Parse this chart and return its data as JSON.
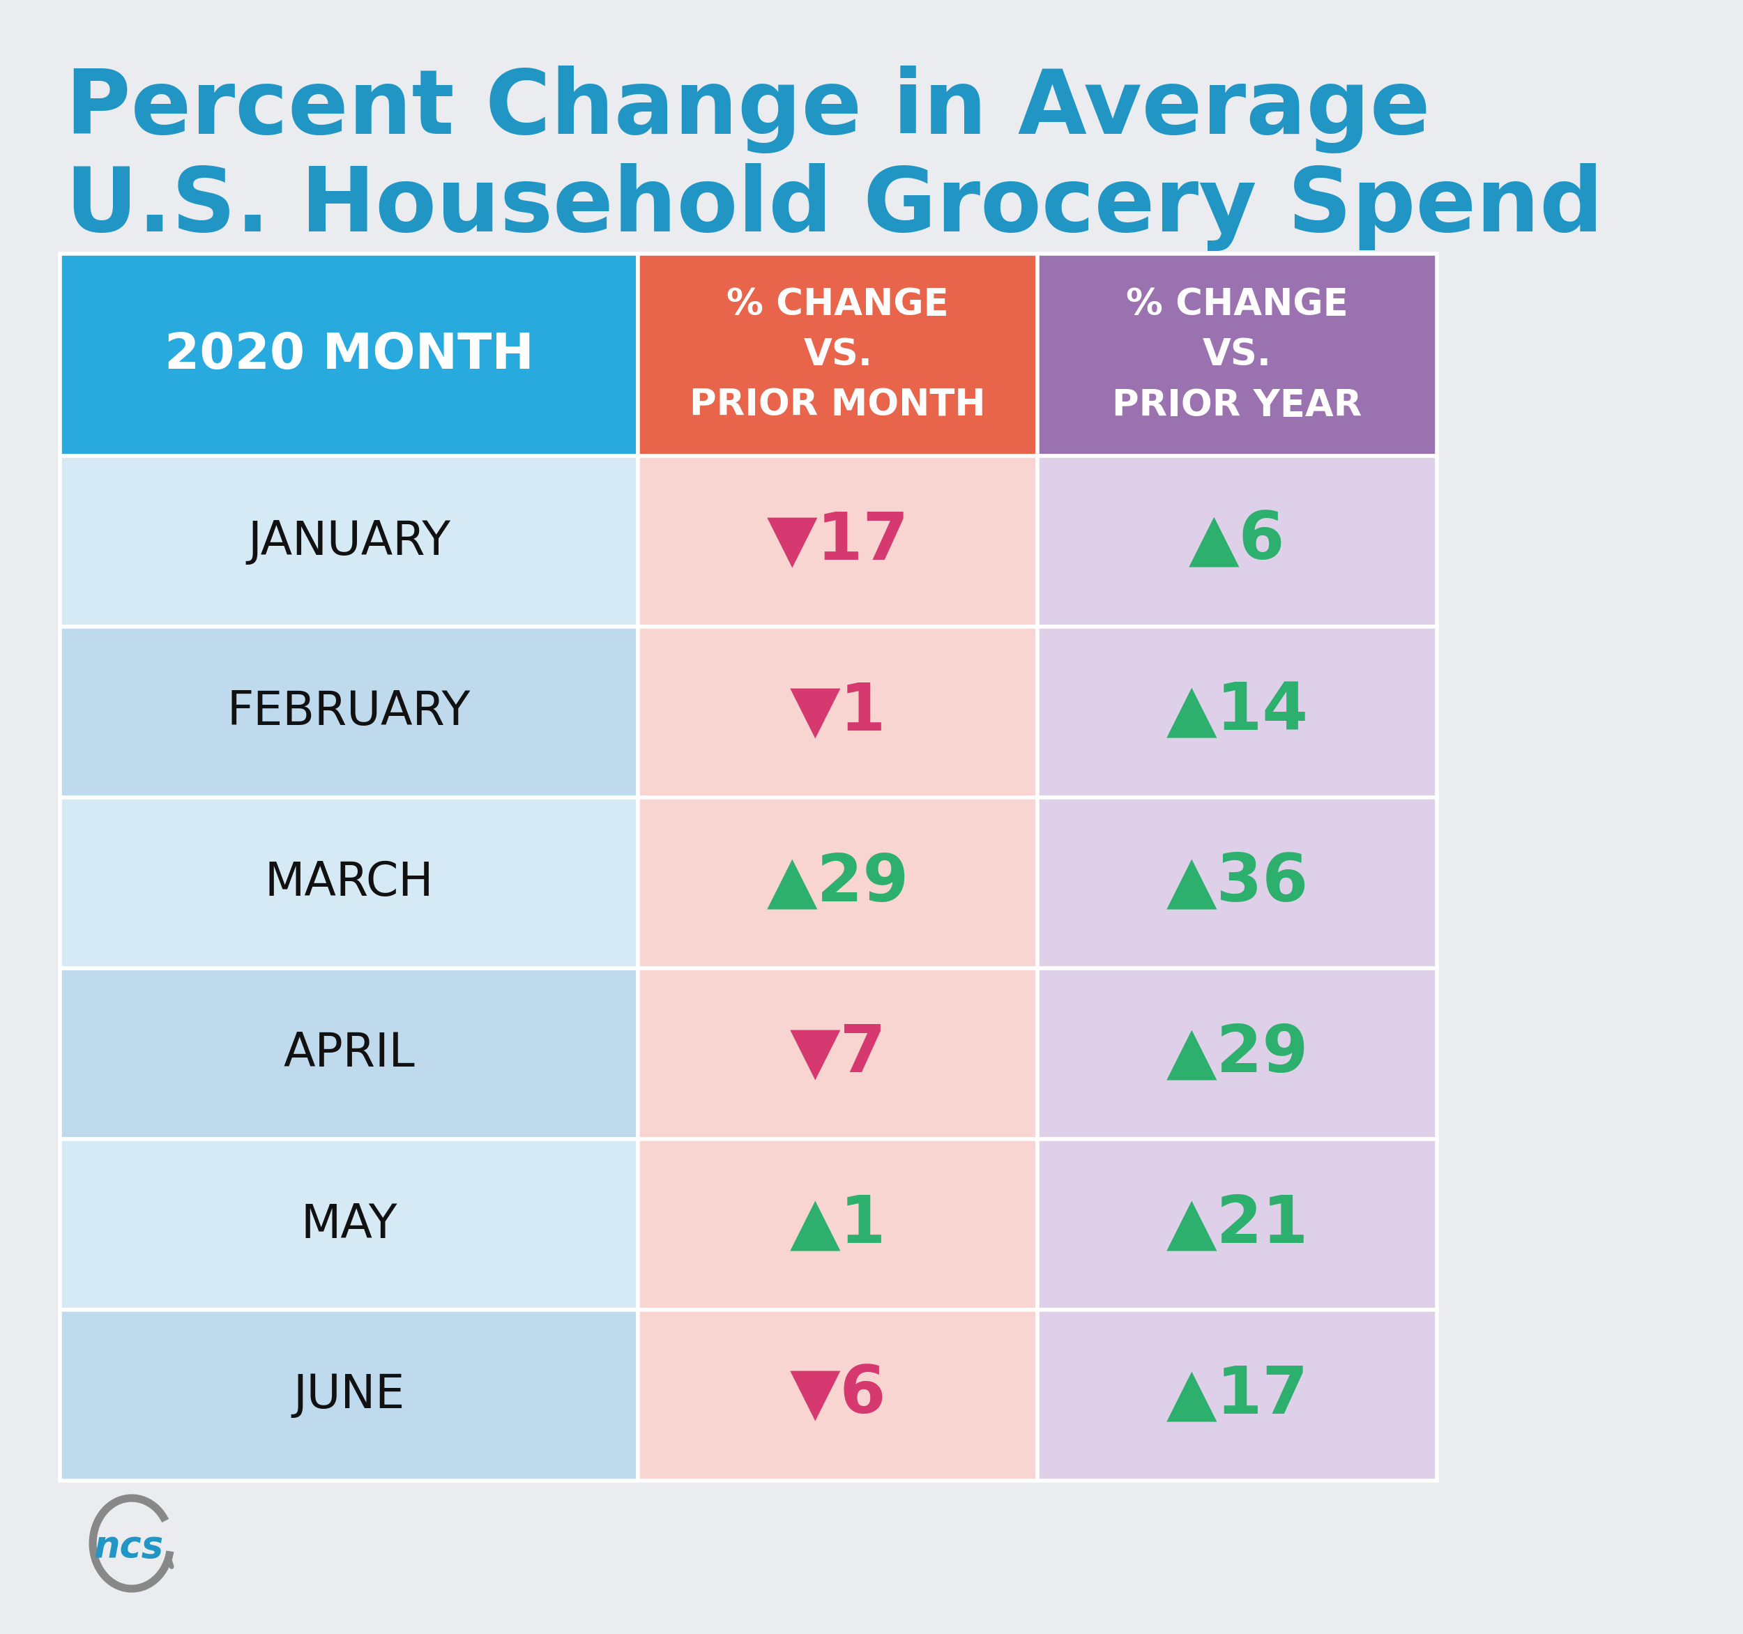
{
  "title_line1": "Percent Change in Average",
  "title_line2": "U.S. Household Grocery Spend",
  "title_color": "#2196C4",
  "bg_color": "#EAECF0",
  "header_col1_text": "2020 MONTH",
  "header_col2_text": "% CHANGE\nVS.\nPRIOR MONTH",
  "header_col3_text": "% CHANGE\nVS.\nPRIOR YEAR",
  "header_col1_bg": "#29AADE",
  "header_col2_bg": "#E8644A",
  "header_col3_bg": "#9B72B0",
  "months": [
    "JANUARY",
    "FEBRUARY",
    "MARCH",
    "APRIL",
    "MAY",
    "JUNE"
  ],
  "prior_month_values": [
    -17,
    -1,
    29,
    -7,
    1,
    -6
  ],
  "prior_year_values": [
    6,
    14,
    36,
    29,
    21,
    17
  ],
  "col1_row_bg_even": "#D6EAF5",
  "col1_row_bg_odd": "#BFD9ED",
  "col2_row_bg": "#F8D5D0",
  "col3_row_bg": "#DDD0E8",
  "up_color": "#2DAF6E",
  "down_color": "#D63870",
  "month_text_color": "#111111",
  "border_color": "#FFFFFF"
}
